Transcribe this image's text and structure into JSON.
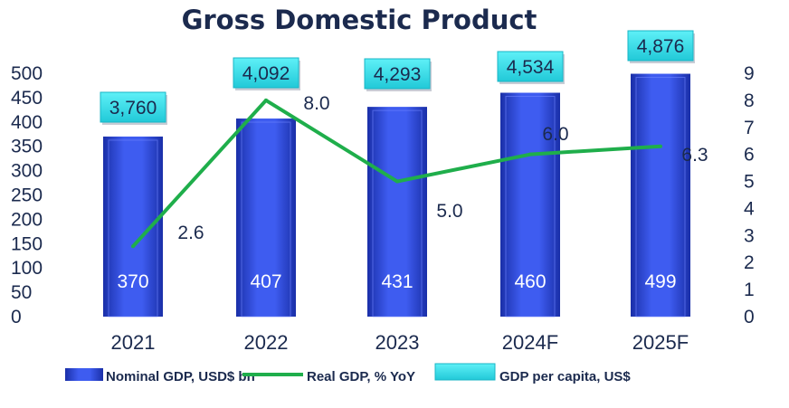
{
  "chart_data": {
    "type": "bar",
    "title": "Gross Domestic Product",
    "categories": [
      "2021",
      "2022",
      "2023",
      "2024F",
      "2025F"
    ],
    "y_left": {
      "ticks": [
        "0",
        "50",
        "100",
        "150",
        "200",
        "250",
        "300",
        "350",
        "400",
        "450",
        "500"
      ],
      "ylim": [
        0,
        500
      ]
    },
    "y_right": {
      "ticks": [
        "0",
        "1",
        "2",
        "3",
        "4",
        "5",
        "6",
        "7",
        "8",
        "9"
      ],
      "ylim": [
        0,
        9
      ]
    },
    "grid": false,
    "legend_position": "bottom",
    "series": [
      {
        "name": "Nominal GDP, USD$ bn",
        "type": "bar",
        "axis": "left",
        "values": [
          370,
          407,
          431,
          460,
          499
        ],
        "labels": [
          "370",
          "407",
          "431",
          "460",
          "499"
        ],
        "color": "#2f4fd6"
      },
      {
        "name": "Real GDP, % YoY",
        "type": "line",
        "axis": "right",
        "values": [
          2.6,
          8.0,
          5.0,
          6.0,
          6.3
        ],
        "labels": [
          "2.6",
          "8.0",
          "5.0",
          "6.0",
          "6.3"
        ],
        "color": "#1fae4b"
      },
      {
        "name": "GDP per capita, US$",
        "type": "label-box",
        "values": [
          3760,
          4092,
          4293,
          4534,
          4876
        ],
        "labels": [
          "3,760",
          "4,092",
          "4,293",
          "4,534",
          "4,876"
        ],
        "color": "#3fe3ef"
      }
    ]
  }
}
